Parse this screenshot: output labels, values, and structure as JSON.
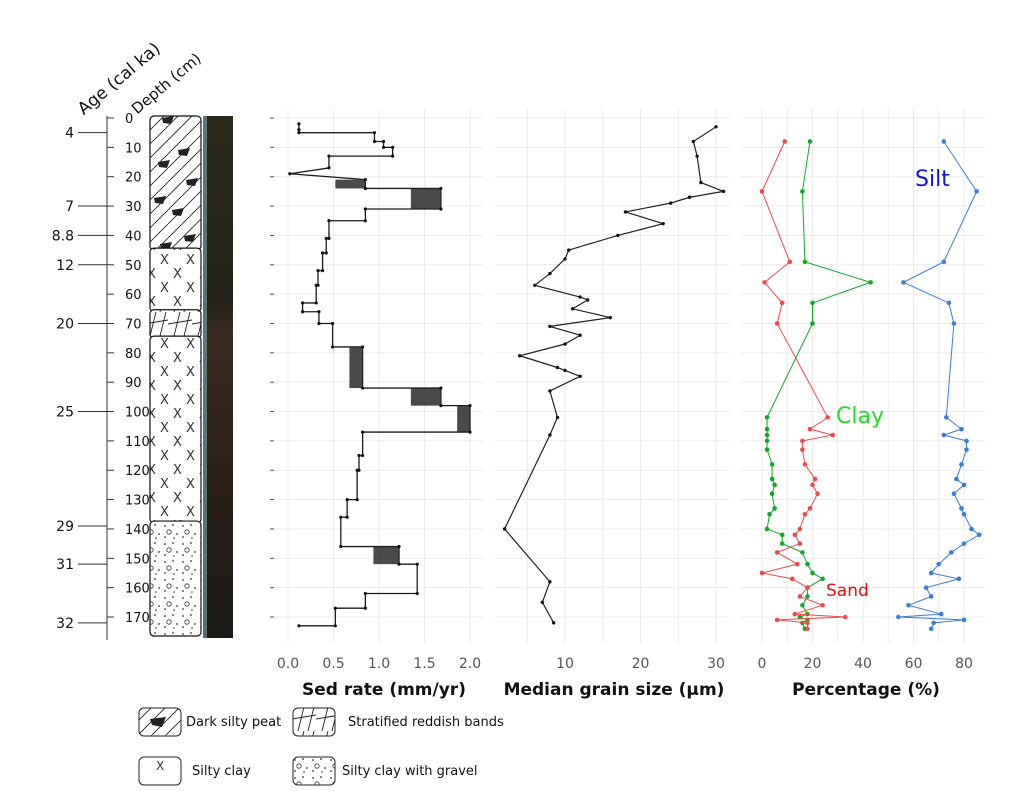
{
  "headers": {
    "age": "Age (cal ka)",
    "depth": "Depth (cm)"
  },
  "core_depth_ticks": [
    0,
    10,
    20,
    30,
    40,
    50,
    60,
    70,
    80,
    90,
    100,
    110,
    120,
    130,
    140,
    150,
    160,
    170
  ],
  "age_markers": [
    {
      "age": "4",
      "depth": 5
    },
    {
      "age": "7",
      "depth": 30
    },
    {
      "age": "8.8",
      "depth": 40
    },
    {
      "age": "12",
      "depth": 50
    },
    {
      "age": "20",
      "depth": 70
    },
    {
      "age": "25",
      "depth": 100
    },
    {
      "age": "29",
      "depth": 139
    },
    {
      "age": "31",
      "depth": 152
    },
    {
      "age": "32",
      "depth": 172
    }
  ],
  "lithology": [
    {
      "unit": "peat",
      "top": 0,
      "bottom": 45
    },
    {
      "unit": "silty_clay",
      "top": 45,
      "bottom": 66
    },
    {
      "unit": "stratified",
      "top": 66,
      "bottom": 75
    },
    {
      "unit": "silty_clay",
      "top": 75,
      "bottom": 138
    },
    {
      "unit": "gravel",
      "top": 138,
      "bottom": 180
    }
  ],
  "legend": {
    "peat": "Dark silty peat",
    "stratified": "Stratified reddish bands",
    "silty_clay": "Silty clay",
    "gravel": "Silty clay with gravel"
  },
  "chart_data": [
    {
      "type": "line",
      "xlabel": "Sed rate (mm/yr)",
      "xlim": [
        0,
        2.0
      ],
      "xticks": [
        "0.0",
        "0.5",
        "1.0",
        "1.5",
        "2.0"
      ],
      "ylim": [
        0,
        180
      ],
      "points": [
        [
          0.12,
          2
        ],
        [
          0.12,
          4
        ],
        [
          0.12,
          5
        ],
        [
          0.95,
          5
        ],
        [
          0.95,
          8
        ],
        [
          1.05,
          8
        ],
        [
          1.05,
          10
        ],
        [
          1.15,
          10
        ],
        [
          1.15,
          13
        ],
        [
          0.45,
          13
        ],
        [
          0.45,
          17
        ],
        [
          0.02,
          19
        ],
        [
          0.85,
          21
        ],
        [
          0.85,
          24
        ],
        [
          1.68,
          24
        ],
        [
          1.68,
          31
        ],
        [
          0.85,
          31
        ],
        [
          0.85,
          35
        ],
        [
          0.45,
          35
        ],
        [
          0.45,
          41
        ],
        [
          0.42,
          41
        ],
        [
          0.42,
          46
        ],
        [
          0.38,
          46
        ],
        [
          0.38,
          52
        ],
        [
          0.33,
          52
        ],
        [
          0.33,
          57
        ],
        [
          0.31,
          57
        ],
        [
          0.31,
          63
        ],
        [
          0.16,
          63
        ],
        [
          0.16,
          66
        ],
        [
          0.34,
          66
        ],
        [
          0.34,
          70
        ],
        [
          0.49,
          70
        ],
        [
          0.49,
          78
        ],
        [
          0.82,
          78
        ],
        [
          0.82,
          92
        ],
        [
          1.68,
          92
        ],
        [
          1.68,
          98
        ],
        [
          2.0,
          98
        ],
        [
          2.0,
          107
        ],
        [
          0.82,
          107
        ],
        [
          0.82,
          115
        ],
        [
          0.78,
          115
        ],
        [
          0.78,
          120
        ],
        [
          0.76,
          120
        ],
        [
          0.76,
          130
        ],
        [
          0.65,
          130
        ],
        [
          0.65,
          136
        ],
        [
          0.58,
          136
        ],
        [
          0.58,
          146
        ],
        [
          1.22,
          146
        ],
        [
          1.22,
          152
        ],
        [
          1.42,
          152
        ],
        [
          1.42,
          162
        ],
        [
          0.85,
          162
        ],
        [
          0.85,
          167
        ],
        [
          0.52,
          167
        ],
        [
          0.52,
          173
        ],
        [
          0.12,
          173
        ]
      ]
    },
    {
      "type": "line",
      "xlabel": "Median grain size (µm)",
      "xlim": [
        0,
        33
      ],
      "xticks": [
        "10",
        "20",
        "30"
      ],
      "ylim": [
        0,
        180
      ],
      "points": [
        [
          30,
          3
        ],
        [
          27,
          8
        ],
        [
          27.5,
          13
        ],
        [
          28,
          22
        ],
        [
          31,
          25
        ],
        [
          26.5,
          27
        ],
        [
          24,
          29
        ],
        [
          18,
          32
        ],
        [
          23,
          36
        ],
        [
          17,
          40
        ],
        [
          10.5,
          45
        ],
        [
          10,
          48
        ],
        [
          8,
          53
        ],
        [
          6,
          57
        ],
        [
          12,
          61
        ],
        [
          13,
          62
        ],
        [
          11,
          65
        ],
        [
          16,
          68
        ],
        [
          8,
          71
        ],
        [
          12,
          74
        ],
        [
          10,
          77
        ],
        [
          4,
          81
        ],
        [
          9,
          85
        ],
        [
          10,
          86
        ],
        [
          12,
          88
        ],
        [
          8,
          93
        ],
        [
          9,
          102
        ],
        [
          8,
          108
        ],
        [
          2,
          140
        ],
        [
          8,
          158
        ],
        [
          7,
          165
        ],
        [
          8.5,
          172
        ]
      ]
    },
    {
      "type": "line",
      "xlabel": "Percentage (%)",
      "xlim": [
        -3,
        90
      ],
      "xticks": [
        "0",
        "20",
        "40",
        "60",
        "80"
      ],
      "ylim": [
        0,
        180
      ],
      "series": [
        {
          "name": "Silt",
          "color": "#3a7dd8",
          "points": [
            [
              72,
              8
            ],
            [
              85,
              25
            ],
            [
              72,
              49
            ],
            [
              56,
              56
            ],
            [
              74,
              63
            ],
            [
              76,
              70
            ],
            [
              73,
              102
            ],
            [
              79,
              106
            ],
            [
              72,
              108
            ],
            [
              81,
              110
            ],
            [
              81,
              113
            ],
            [
              79,
              118
            ],
            [
              77,
              123
            ],
            [
              80,
              125
            ],
            [
              76,
              128
            ],
            [
              79,
              133
            ],
            [
              80,
              135
            ],
            [
              83,
              140
            ],
            [
              86,
              142
            ],
            [
              80,
              145
            ],
            [
              75,
              148
            ],
            [
              70,
              152
            ],
            [
              67,
              155
            ],
            [
              78,
              157
            ],
            [
              65,
              160
            ],
            [
              67,
              163
            ],
            [
              58,
              166
            ],
            [
              71,
              169
            ],
            [
              54,
              170
            ],
            [
              80,
              171
            ],
            [
              68,
              172
            ],
            [
              67,
              174
            ]
          ]
        },
        {
          "name": "Clay",
          "color": "#10a82a",
          "points": [
            [
              19,
              8
            ],
            [
              16,
              25
            ],
            [
              17,
              49
            ],
            [
              43,
              56
            ],
            [
              20,
              63
            ],
            [
              20,
              70
            ],
            [
              2,
              102
            ],
            [
              2,
              106
            ],
            [
              2,
              108
            ],
            [
              2,
              110
            ],
            [
              2,
              113
            ],
            [
              4,
              118
            ],
            [
              4,
              123
            ],
            [
              5,
              125
            ],
            [
              4,
              128
            ],
            [
              5,
              133
            ],
            [
              3,
              135
            ],
            [
              2,
              140
            ],
            [
              8,
              142
            ],
            [
              8,
              145
            ],
            [
              16,
              148
            ],
            [
              18,
              152
            ],
            [
              20,
              155
            ],
            [
              24,
              157
            ],
            [
              18,
              160
            ],
            [
              18,
              163
            ],
            [
              16,
              166
            ],
            [
              18,
              169
            ],
            [
              15,
              170
            ],
            [
              18,
              171
            ],
            [
              16,
              172
            ],
            [
              17,
              174
            ]
          ]
        },
        {
          "name": "Sand",
          "color": "#ef4a4a",
          "points": [
            [
              9,
              8
            ],
            [
              0,
              25
            ],
            [
              11,
              49
            ],
            [
              1,
              56
            ],
            [
              8,
              63
            ],
            [
              6,
              70
            ],
            [
              26,
              102
            ],
            [
              19,
              106
            ],
            [
              28,
              108
            ],
            [
              16,
              110
            ],
            [
              16,
              113
            ],
            [
              17,
              118
            ],
            [
              21,
              123
            ],
            [
              20,
              125
            ],
            [
              22,
              128
            ],
            [
              19,
              133
            ],
            [
              17,
              135
            ],
            [
              15,
              140
            ],
            [
              13,
              142
            ],
            [
              15,
              145
            ],
            [
              6,
              148
            ],
            [
              14,
              152
            ],
            [
              0,
              155
            ],
            [
              12,
              157
            ],
            [
              18,
              160
            ],
            [
              15,
              163
            ],
            [
              24,
              166
            ],
            [
              13,
              169
            ],
            [
              33,
              170
            ],
            [
              6,
              171
            ],
            [
              18,
              172
            ],
            [
              18,
              174
            ]
          ]
        }
      ]
    }
  ]
}
